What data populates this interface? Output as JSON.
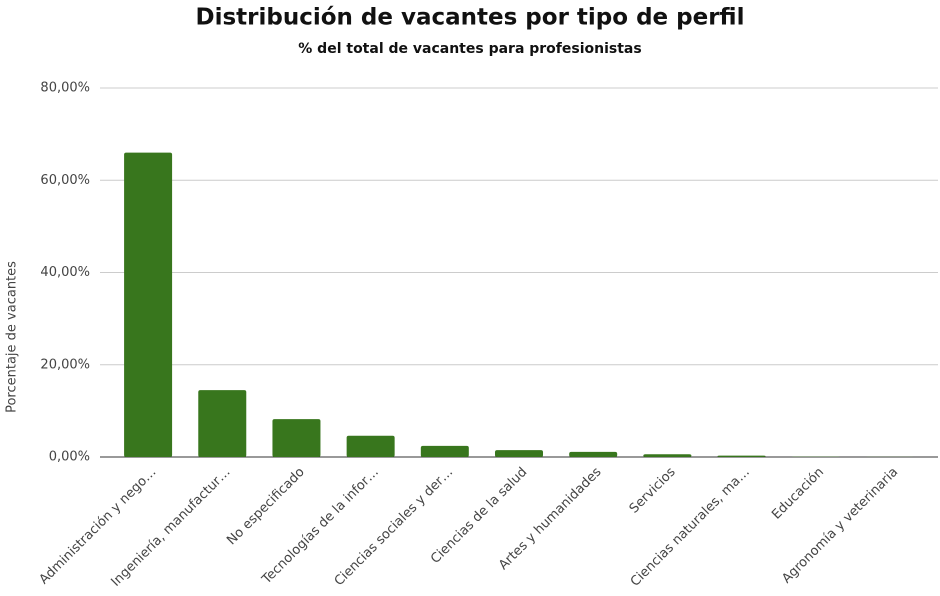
{
  "chart_data": {
    "type": "bar",
    "title": "Distribución de vacantes por tipo de perfil",
    "subtitle": "% del total de vacantes para profesionistas",
    "y_label": "Porcentaje de vacantes",
    "categories": [
      "Administración y nego…",
      "Ingeniería, manufactur…",
      "No especificado",
      "Tecnologías de la infor…",
      "Ciencias sociales y der…",
      "Ciencias de la salud",
      "Artes y humanidades",
      "Servicios",
      "Ciencias naturales, ma…",
      "Educación",
      "Agronomía y veterinaria"
    ],
    "values": [
      66,
      14.5,
      8.2,
      4.6,
      2.4,
      1.5,
      1.1,
      0.6,
      0.3,
      0.05,
      0.02
    ],
    "color": "#38761d",
    "ylim": [
      0,
      80
    ],
    "yticks": [
      {
        "value": 0,
        "label": "0,00%"
      },
      {
        "value": 20,
        "label": "20,00%"
      },
      {
        "value": 40,
        "label": "40,00%"
      },
      {
        "value": 60,
        "label": "60,00%"
      },
      {
        "value": 80,
        "label": "80,00%"
      }
    ],
    "grid": true
  }
}
